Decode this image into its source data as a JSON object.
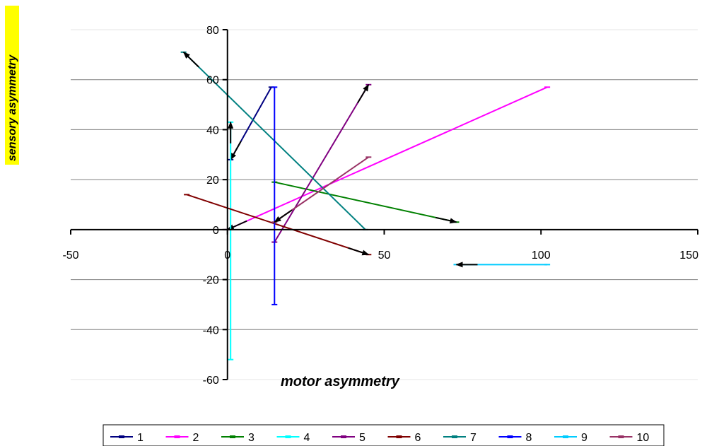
{
  "chart_data": {
    "type": "line",
    "title": "",
    "xlabel": "motor  asymmetry",
    "ylabel": "sensory asymmetry",
    "xlim": [
      -50,
      150
    ],
    "ylim": [
      -60,
      80
    ],
    "xticks": [
      -50,
      0,
      50,
      100,
      150
    ],
    "yticks": [
      -60,
      -40,
      -20,
      0,
      20,
      40,
      60,
      80
    ],
    "xtick_labels": [
      "-50",
      "0",
      "50",
      "100",
      "150"
    ],
    "ytick_labels": [
      "-60",
      "-40",
      "-20",
      "0",
      "20",
      "40",
      "60",
      "80"
    ],
    "grid": "horizontal",
    "legend_position": "bottom",
    "series": [
      {
        "name": "1",
        "color": "#000080",
        "points": [
          [
            14,
            57
          ],
          [
            1,
            28
          ]
        ],
        "arrow": true
      },
      {
        "name": "2",
        "color": "#FF00FF",
        "points": [
          [
            102,
            57
          ],
          [
            0,
            0
          ]
        ],
        "arrow": true
      },
      {
        "name": "3",
        "color": "#008000",
        "points": [
          [
            15,
            19
          ],
          [
            73,
            3
          ]
        ],
        "arrow": true
      },
      {
        "name": "4",
        "color": "#00FFFF",
        "points": [
          [
            1,
            -52
          ],
          [
            1,
            43
          ]
        ],
        "arrow": true
      },
      {
        "name": "5",
        "color": "#800080",
        "points": [
          [
            15,
            -5
          ],
          [
            45,
            58
          ]
        ],
        "arrow": true
      },
      {
        "name": "6",
        "color": "#800000",
        "points": [
          [
            -13,
            14
          ],
          [
            45,
            -10
          ]
        ],
        "arrow": true
      },
      {
        "name": "7",
        "color": "#008080",
        "points": [
          [
            44,
            0
          ],
          [
            -14,
            71
          ]
        ],
        "arrow": true
      },
      {
        "name": "8",
        "color": "#0000FF",
        "points": [
          [
            15,
            -30
          ],
          [
            15,
            57
          ]
        ],
        "arrow": false
      },
      {
        "name": "9",
        "color": "#00CCFF",
        "points": [
          [
            102,
            -14
          ],
          [
            73,
            -14
          ]
        ],
        "arrow": true
      },
      {
        "name": "10",
        "color": "#993366",
        "points": [
          [
            45,
            29
          ],
          [
            15,
            3
          ]
        ],
        "arrow": true
      }
    ]
  }
}
